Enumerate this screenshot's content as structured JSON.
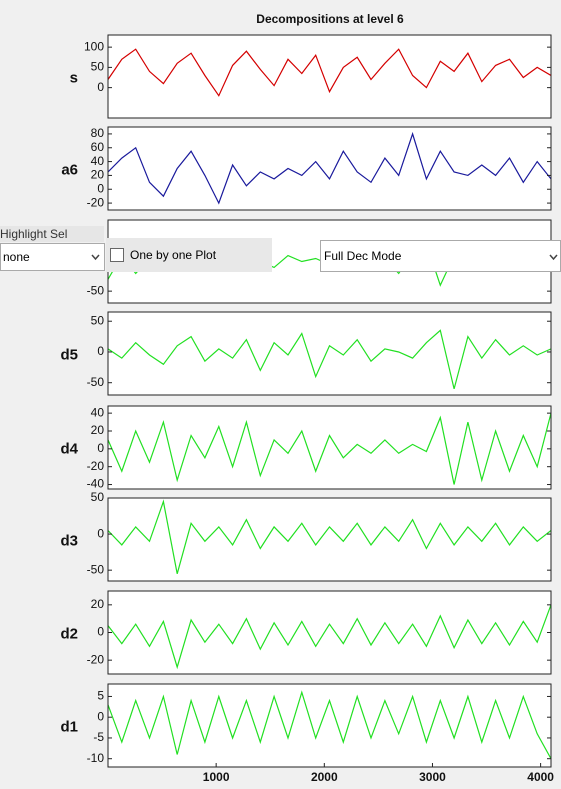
{
  "title": "Decompositions at level 6",
  "chart_data": [
    {
      "type": "line",
      "label": "s",
      "color": "#d40000",
      "xlim": [
        0,
        4096
      ],
      "ylim": [
        -75,
        130
      ],
      "yticks": [
        0,
        50,
        100
      ],
      "x": [
        0,
        128,
        256,
        384,
        512,
        640,
        768,
        896,
        1024,
        1152,
        1280,
        1408,
        1536,
        1664,
        1792,
        1920,
        2048,
        2176,
        2304,
        2432,
        2560,
        2688,
        2816,
        2944,
        3072,
        3200,
        3328,
        3456,
        3584,
        3712,
        3840,
        3968,
        4096
      ],
      "values": [
        20,
        70,
        95,
        40,
        10,
        60,
        85,
        30,
        -20,
        55,
        90,
        45,
        5,
        70,
        35,
        80,
        -10,
        50,
        75,
        20,
        60,
        95,
        30,
        0,
        65,
        40,
        85,
        15,
        55,
        70,
        25,
        50,
        30
      ]
    },
    {
      "type": "line",
      "label": "a6",
      "color": "#1a1a9c",
      "xlim": [
        0,
        4096
      ],
      "ylim": [
        -30,
        90
      ],
      "yticks": [
        -20,
        0,
        20,
        40,
        60,
        80
      ],
      "x": [
        0,
        128,
        256,
        384,
        512,
        640,
        768,
        896,
        1024,
        1152,
        1280,
        1408,
        1536,
        1664,
        1792,
        1920,
        2048,
        2176,
        2304,
        2432,
        2560,
        2688,
        2816,
        2944,
        3072,
        3200,
        3328,
        3456,
        3584,
        3712,
        3840,
        3968,
        4096
      ],
      "values": [
        25,
        45,
        60,
        10,
        -10,
        30,
        55,
        20,
        -20,
        35,
        5,
        25,
        15,
        30,
        20,
        40,
        15,
        55,
        25,
        10,
        45,
        20,
        80,
        15,
        55,
        25,
        20,
        35,
        20,
        45,
        10,
        40,
        15
      ]
    },
    {
      "type": "line",
      "color": "#22e022",
      "xlim": [
        0,
        4096
      ],
      "ylim": [
        -70,
        70
      ],
      "yticks": [
        -50
      ],
      "x": [
        0,
        128,
        256,
        384,
        512,
        640,
        768,
        896,
        1024,
        1152,
        1280,
        1408,
        1536,
        1664,
        1792,
        1920,
        2048,
        2176,
        2304,
        2432,
        2560,
        2688,
        2816,
        2944,
        3072,
        3200,
        3328,
        3456,
        3584,
        3712,
        3840,
        3968,
        4096
      ],
      "values": [
        -30,
        10,
        -20,
        5,
        0,
        -10,
        15,
        -5,
        20,
        -15,
        5,
        0,
        -10,
        10,
        0,
        5,
        -5,
        10,
        -10,
        0,
        5,
        -20,
        15,
        30,
        -40,
        10,
        0,
        -10,
        5,
        0,
        -5,
        0,
        10
      ]
    },
    {
      "type": "line",
      "label": "d5",
      "color": "#22e022",
      "xlim": [
        0,
        4096
      ],
      "ylim": [
        -70,
        65
      ],
      "yticks": [
        -50,
        0,
        50
      ],
      "x": [
        0,
        128,
        256,
        384,
        512,
        640,
        768,
        896,
        1024,
        1152,
        1280,
        1408,
        1536,
        1664,
        1792,
        1920,
        2048,
        2176,
        2304,
        2432,
        2560,
        2688,
        2816,
        2944,
        3072,
        3200,
        3328,
        3456,
        3584,
        3712,
        3840,
        3968,
        4096
      ],
      "values": [
        5,
        -10,
        15,
        -5,
        -20,
        10,
        25,
        -15,
        5,
        -10,
        20,
        -30,
        15,
        -5,
        30,
        -40,
        10,
        -5,
        20,
        -15,
        5,
        0,
        -10,
        15,
        35,
        -60,
        25,
        -10,
        20,
        -5,
        10,
        -5,
        5
      ]
    },
    {
      "type": "line",
      "label": "d4",
      "color": "#22e022",
      "xlim": [
        0,
        4096
      ],
      "ylim": [
        -45,
        48
      ],
      "yticks": [
        -40,
        -20,
        0,
        20,
        40
      ],
      "x": [
        0,
        128,
        256,
        384,
        512,
        640,
        768,
        896,
        1024,
        1152,
        1280,
        1408,
        1536,
        1664,
        1792,
        1920,
        2048,
        2176,
        2304,
        2432,
        2560,
        2688,
        2816,
        2944,
        3072,
        3200,
        3328,
        3456,
        3584,
        3712,
        3840,
        3968,
        4096
      ],
      "values": [
        10,
        -25,
        20,
        -15,
        30,
        -35,
        15,
        -10,
        25,
        -20,
        30,
        -30,
        10,
        -5,
        20,
        -25,
        15,
        -10,
        5,
        -5,
        10,
        -5,
        5,
        -3,
        35,
        -40,
        30,
        -35,
        20,
        -25,
        15,
        -20,
        40
      ]
    },
    {
      "type": "line",
      "label": "d3",
      "color": "#22e022",
      "xlim": [
        0,
        4096
      ],
      "ylim": [
        -65,
        50
      ],
      "yticks": [
        -50,
        0,
        50
      ],
      "x": [
        0,
        128,
        256,
        384,
        512,
        640,
        768,
        896,
        1024,
        1152,
        1280,
        1408,
        1536,
        1664,
        1792,
        1920,
        2048,
        2176,
        2304,
        2432,
        2560,
        2688,
        2816,
        2944,
        3072,
        3200,
        3328,
        3456,
        3584,
        3712,
        3840,
        3968,
        4096
      ],
      "values": [
        5,
        -15,
        10,
        -10,
        45,
        -55,
        15,
        -10,
        10,
        -15,
        20,
        -20,
        10,
        -10,
        15,
        -15,
        10,
        -10,
        15,
        -15,
        10,
        -10,
        20,
        -20,
        15,
        -15,
        10,
        -10,
        15,
        -15,
        10,
        -10,
        5
      ]
    },
    {
      "type": "line",
      "label": "d2",
      "color": "#22e022",
      "xlim": [
        0,
        4096
      ],
      "ylim": [
        -30,
        30
      ],
      "yticks": [
        -20,
        0,
        20
      ],
      "x": [
        0,
        128,
        256,
        384,
        512,
        640,
        768,
        896,
        1024,
        1152,
        1280,
        1408,
        1536,
        1664,
        1792,
        1920,
        2048,
        2176,
        2304,
        2432,
        2560,
        2688,
        2816,
        2944,
        3072,
        3200,
        3328,
        3456,
        3584,
        3712,
        3840,
        3968,
        4096
      ],
      "values": [
        5,
        -8,
        6,
        -10,
        8,
        -25,
        9,
        -7,
        6,
        -8,
        10,
        -12,
        7,
        -9,
        8,
        -10,
        6,
        -8,
        10,
        -9,
        7,
        -8,
        6,
        -10,
        12,
        -11,
        9,
        -8,
        7,
        -9,
        8,
        -7,
        20
      ]
    },
    {
      "type": "line",
      "label": "d1",
      "color": "#22e022",
      "xlim": [
        0,
        4096
      ],
      "ylim": [
        -12,
        8
      ],
      "yticks": [
        -10,
        -5,
        0,
        5
      ],
      "xticks": [
        1000,
        2000,
        3000,
        4000
      ],
      "x": [
        0,
        128,
        256,
        384,
        512,
        640,
        768,
        896,
        1024,
        1152,
        1280,
        1408,
        1536,
        1664,
        1792,
        1920,
        2048,
        2176,
        2304,
        2432,
        2560,
        2688,
        2816,
        2944,
        3072,
        3200,
        3328,
        3456,
        3584,
        3712,
        3840,
        3968,
        4096
      ],
      "values": [
        3,
        -6,
        4,
        -5,
        5,
        -9,
        4,
        -6,
        5,
        -5,
        4,
        -6,
        5,
        -5,
        6,
        -5,
        4,
        -6,
        5,
        -5,
        4,
        -4,
        5,
        -6,
        4,
        -5,
        5,
        -6,
        4,
        -5,
        5,
        -4,
        -10
      ]
    }
  ],
  "controls": {
    "highlight_label": "Highlight Sel",
    "highlight_value": "none",
    "checkbox_label": "One by one Plot",
    "mode_value": "Full Dec Mode"
  }
}
